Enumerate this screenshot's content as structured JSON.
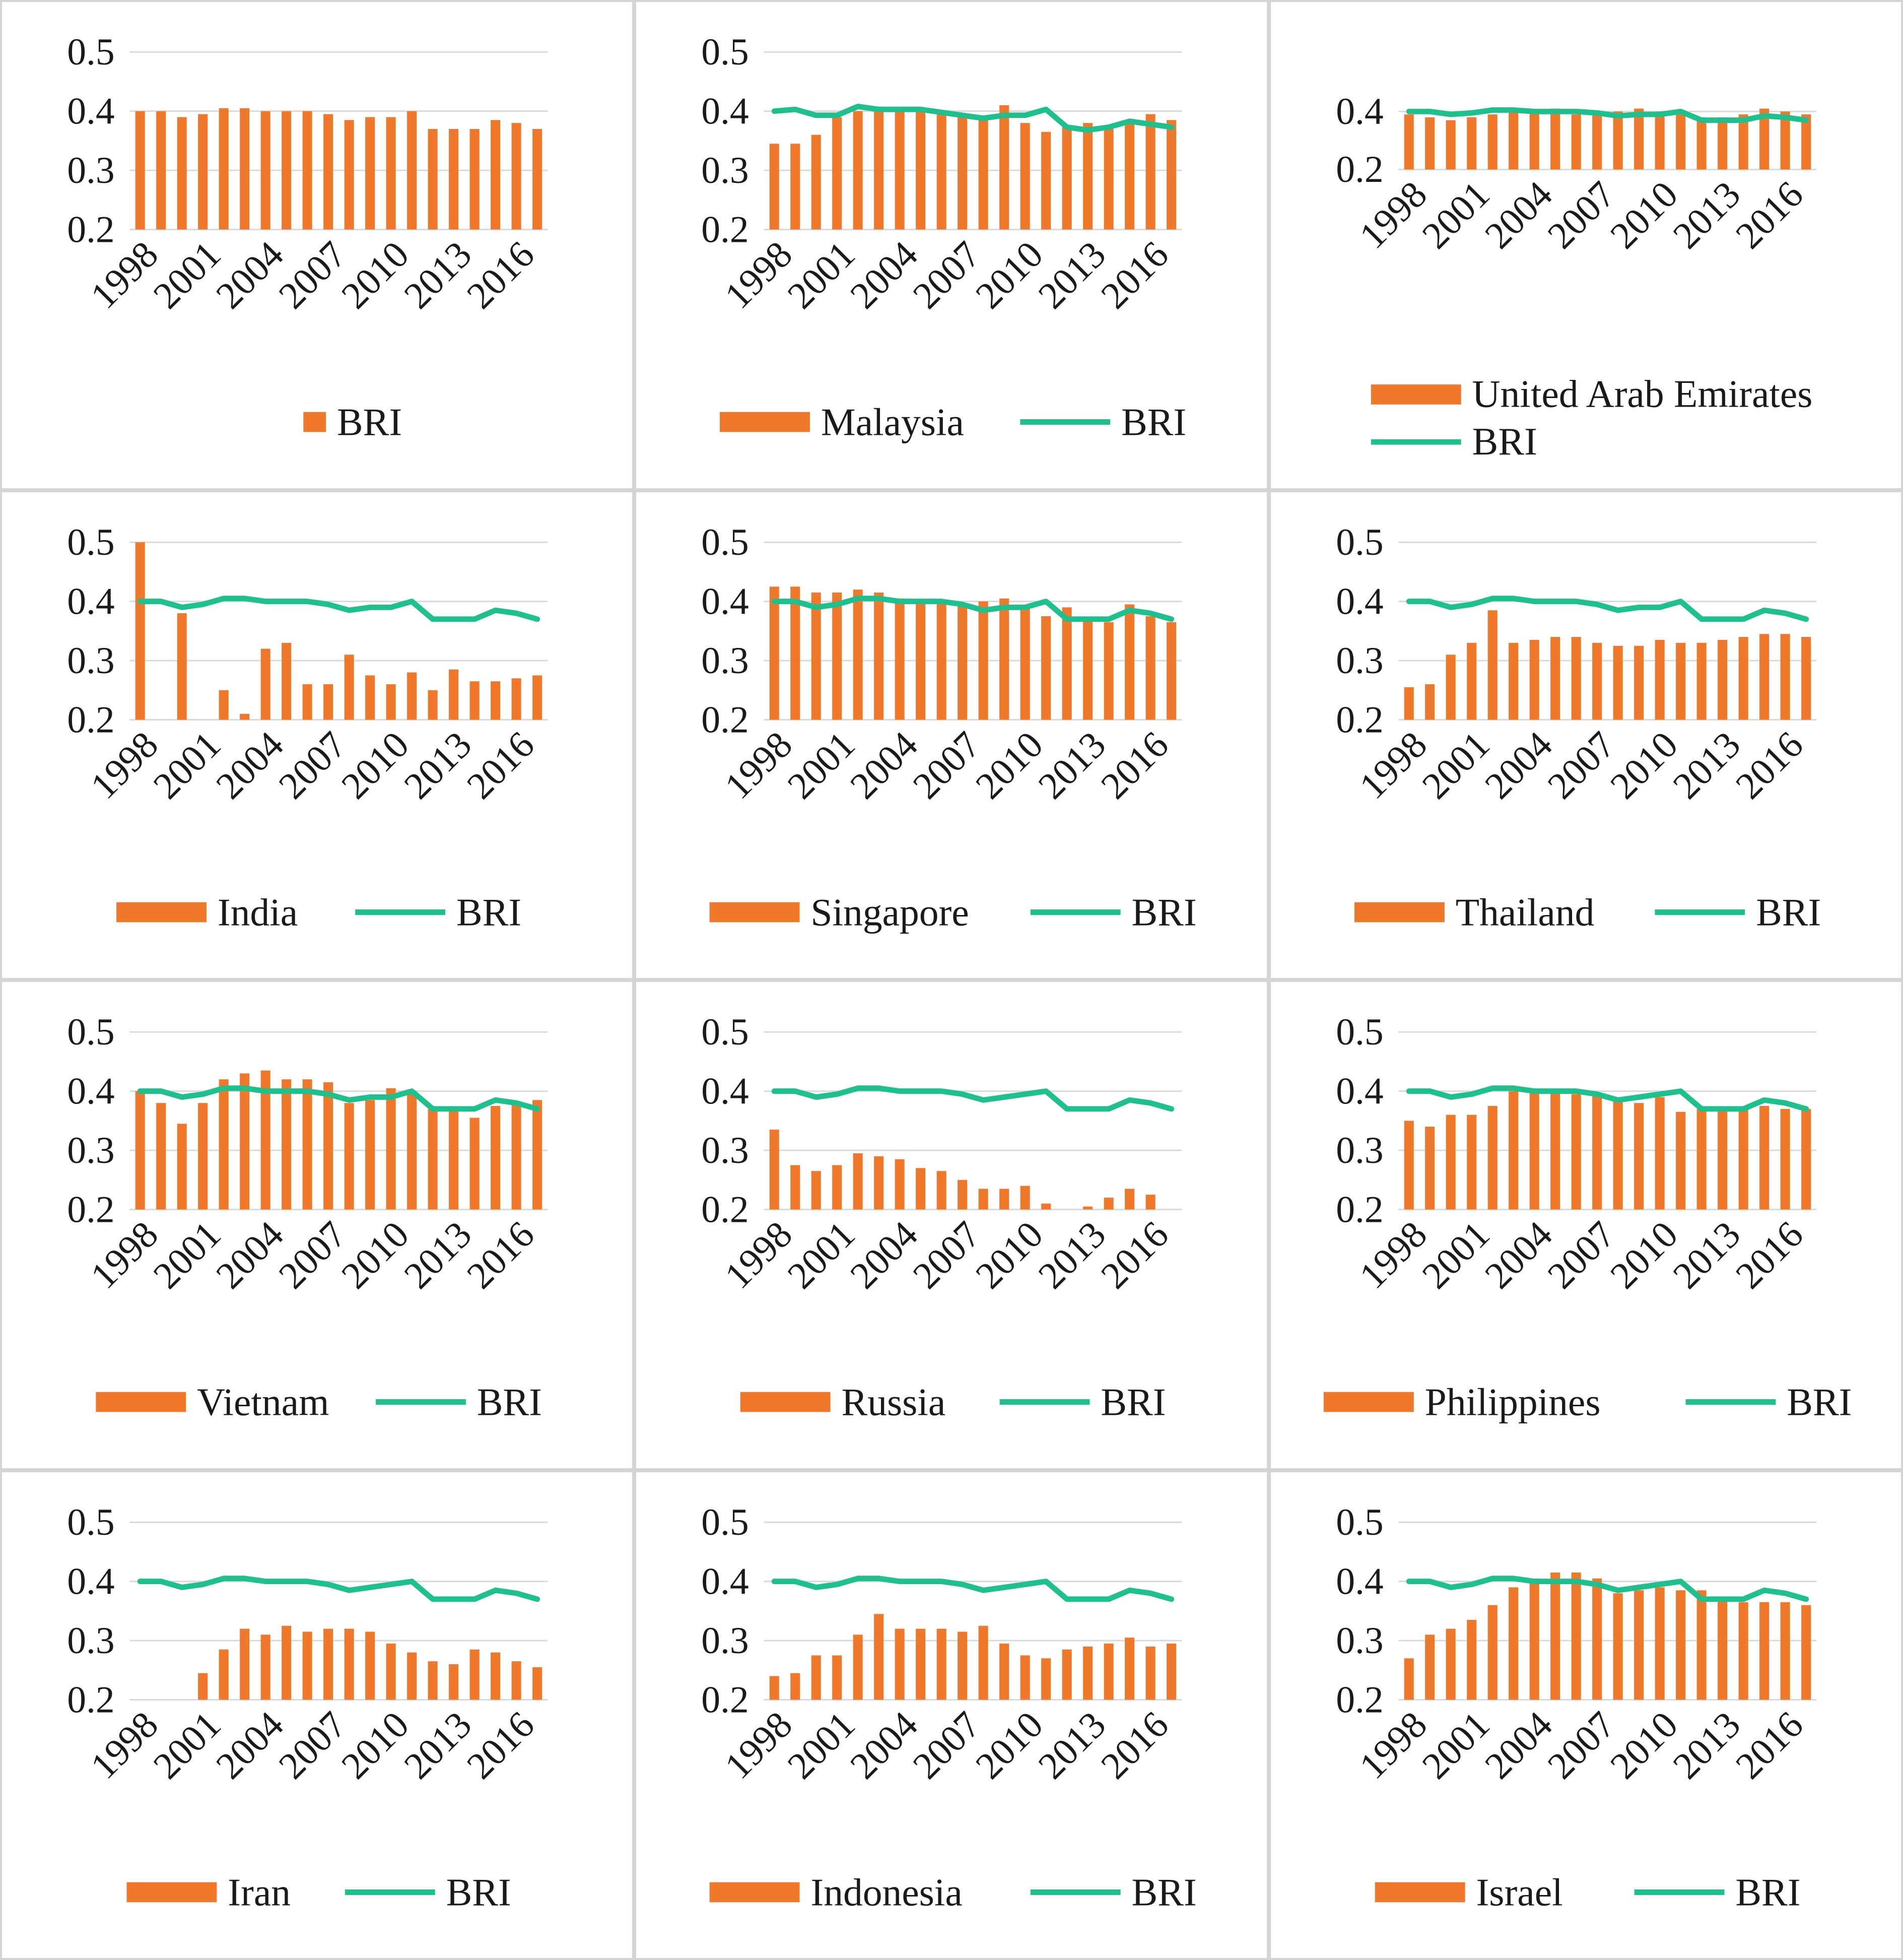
{
  "colors": {
    "bar": "#f0782a",
    "line": "#1ec08e",
    "grid": "#d9d9d9",
    "text": "#1a1a1a"
  },
  "chart_data": [
    {
      "type": "bar",
      "title": "BRI",
      "categories": [
        "1998",
        "1999",
        "2000",
        "2001",
        "2002",
        "2003",
        "2004",
        "2005",
        "2006",
        "2007",
        "2008",
        "2009",
        "2010",
        "2011",
        "2012",
        "2013",
        "2014",
        "2015",
        "2016",
        "2017"
      ],
      "xticks": [
        "1998",
        "2001",
        "2004",
        "2007",
        "2010",
        "2013",
        "2016"
      ],
      "yticks": [
        "0.5",
        "0.4",
        "0.3",
        "0.2"
      ],
      "ylim": [
        0.2,
        0.5
      ],
      "series": [
        {
          "name": "BRI",
          "kind": "bar",
          "values": [
            0.4,
            0.4,
            0.39,
            0.395,
            0.405,
            0.405,
            0.4,
            0.4,
            0.4,
            0.395,
            0.385,
            0.39,
            0.39,
            0.4,
            0.37,
            0.37,
            0.37,
            0.385,
            0.38,
            0.37
          ]
        }
      ]
    },
    {
      "type": "bar+line",
      "title": "Malaysia",
      "categories": [
        "1998",
        "1999",
        "2000",
        "2001",
        "2002",
        "2003",
        "2004",
        "2005",
        "2006",
        "2007",
        "2008",
        "2009",
        "2010",
        "2011",
        "2012",
        "2013",
        "2014",
        "2015",
        "2016",
        "2017"
      ],
      "xticks": [
        "1998",
        "2001",
        "2004",
        "2007",
        "2010",
        "2013",
        "2016"
      ],
      "yticks": [
        "0.5",
        "0.4",
        "0.3",
        "0.2"
      ],
      "ylim": [
        0.2,
        0.5
      ],
      "series": [
        {
          "name": "Malaysia",
          "kind": "bar",
          "values": [
            0.345,
            0.345,
            0.36,
            0.39,
            0.4,
            0.4,
            0.4,
            0.4,
            0.395,
            0.39,
            0.39,
            0.41,
            0.38,
            0.365,
            0.375,
            0.38,
            0.37,
            0.385,
            0.395,
            0.385
          ]
        },
        {
          "name": "BRI",
          "kind": "line",
          "values": [
            0.4,
            0.403,
            0.393,
            0.393,
            0.408,
            0.403,
            0.403,
            0.403,
            0.398,
            0.393,
            0.388,
            0.393,
            0.393,
            0.403,
            0.373,
            0.368,
            0.373,
            0.383,
            0.378,
            0.373
          ]
        }
      ]
    },
    {
      "type": "bar+line",
      "title": "United Arab Emirates",
      "categories": [
        "1998",
        "1999",
        "2000",
        "2001",
        "2002",
        "2003",
        "2004",
        "2005",
        "2006",
        "2007",
        "2008",
        "2009",
        "2010",
        "2011",
        "2012",
        "2013",
        "2014",
        "2015",
        "2016",
        "2017"
      ],
      "xticks": [
        "1998",
        "2001",
        "2004",
        "2007",
        "2010",
        "2013",
        "2016"
      ],
      "yticks": [
        "0.4",
        "0.2"
      ],
      "ylim": [
        0.2,
        0.45
      ],
      "series": [
        {
          "name": "United Arab Emirates",
          "kind": "bar",
          "values": [
            0.39,
            0.38,
            0.37,
            0.38,
            0.39,
            0.4,
            0.4,
            0.41,
            0.39,
            0.4,
            0.4,
            0.41,
            0.4,
            0.39,
            0.38,
            0.38,
            0.39,
            0.41,
            0.4,
            0.39
          ]
        },
        {
          "name": "BRI",
          "kind": "line",
          "values": [
            0.4,
            0.4,
            0.39,
            0.395,
            0.405,
            0.405,
            0.4,
            0.4,
            0.4,
            0.395,
            0.385,
            0.39,
            0.39,
            0.4,
            0.37,
            0.37,
            0.37,
            0.385,
            0.38,
            0.37
          ]
        }
      ]
    },
    {
      "type": "bar+line",
      "title": "India",
      "categories": [
        "1998",
        "1999",
        "2000",
        "2001",
        "2002",
        "2003",
        "2004",
        "2005",
        "2006",
        "2007",
        "2008",
        "2009",
        "2010",
        "2011",
        "2012",
        "2013",
        "2014",
        "2015",
        "2016",
        "2017"
      ],
      "xticks": [
        "1998",
        "2001",
        "2004",
        "2007",
        "2010",
        "2013",
        "2016"
      ],
      "yticks": [
        "0.5",
        "0.4",
        "0.3",
        "0.2"
      ],
      "ylim": [
        0.2,
        0.5
      ],
      "series": [
        {
          "name": "India",
          "kind": "bar",
          "values": [
            0.5,
            0.2,
            0.38,
            0.2,
            0.25,
            0.21,
            0.32,
            0.33,
            0.26,
            0.26,
            0.31,
            0.275,
            0.26,
            0.28,
            0.25,
            0.285,
            0.265,
            0.265,
            0.27,
            0.275
          ]
        },
        {
          "name": "BRI",
          "kind": "line",
          "values": [
            0.4,
            0.4,
            0.39,
            0.395,
            0.405,
            0.405,
            0.4,
            0.4,
            0.4,
            0.395,
            0.385,
            0.39,
            0.39,
            0.4,
            0.37,
            0.37,
            0.37,
            0.385,
            0.38,
            0.37
          ]
        }
      ]
    },
    {
      "type": "bar+line",
      "title": "Singapore",
      "categories": [
        "1998",
        "1999",
        "2000",
        "2001",
        "2002",
        "2003",
        "2004",
        "2005",
        "2006",
        "2007",
        "2008",
        "2009",
        "2010",
        "2011",
        "2012",
        "2013",
        "2014",
        "2015",
        "2016",
        "2017"
      ],
      "xticks": [
        "1998",
        "2001",
        "2004",
        "2007",
        "2010",
        "2013",
        "2016"
      ],
      "yticks": [
        "0.5",
        "0.4",
        "0.3",
        "0.2"
      ],
      "ylim": [
        0.2,
        0.5
      ],
      "series": [
        {
          "name": "Singapore",
          "kind": "bar",
          "values": [
            0.425,
            0.425,
            0.415,
            0.415,
            0.42,
            0.415,
            0.405,
            0.4,
            0.4,
            0.395,
            0.4,
            0.405,
            0.39,
            0.375,
            0.39,
            0.37,
            0.365,
            0.395,
            0.375,
            0.365
          ]
        },
        {
          "name": "BRI",
          "kind": "line",
          "values": [
            0.4,
            0.4,
            0.39,
            0.395,
            0.405,
            0.405,
            0.4,
            0.4,
            0.4,
            0.395,
            0.385,
            0.39,
            0.39,
            0.4,
            0.37,
            0.37,
            0.37,
            0.385,
            0.38,
            0.37
          ]
        }
      ]
    },
    {
      "type": "bar+line",
      "title": "Thailand",
      "categories": [
        "1998",
        "1999",
        "2000",
        "2001",
        "2002",
        "2003",
        "2004",
        "2005",
        "2006",
        "2007",
        "2008",
        "2009",
        "2010",
        "2011",
        "2012",
        "2013",
        "2014",
        "2015",
        "2016",
        "2017"
      ],
      "xticks": [
        "1998",
        "2001",
        "2004",
        "2007",
        "2010",
        "2013",
        "2016"
      ],
      "yticks": [
        "0.5",
        "0.4",
        "0.3",
        "0.2"
      ],
      "ylim": [
        0.2,
        0.5
      ],
      "series": [
        {
          "name": "Thailand",
          "kind": "bar",
          "values": [
            0.255,
            0.26,
            0.31,
            0.33,
            0.385,
            0.33,
            0.335,
            0.34,
            0.34,
            0.33,
            0.325,
            0.325,
            0.335,
            0.33,
            0.33,
            0.335,
            0.34,
            0.345,
            0.345,
            0.34
          ]
        },
        {
          "name": "BRI",
          "kind": "line",
          "values": [
            0.4,
            0.4,
            0.39,
            0.395,
            0.405,
            0.405,
            0.4,
            0.4,
            0.4,
            0.395,
            0.385,
            0.39,
            0.39,
            0.4,
            0.37,
            0.37,
            0.37,
            0.385,
            0.38,
            0.37
          ]
        }
      ]
    },
    {
      "type": "bar+line",
      "title": "Vietnam",
      "categories": [
        "1998",
        "1999",
        "2000",
        "2001",
        "2002",
        "2003",
        "2004",
        "2005",
        "2006",
        "2007",
        "2008",
        "2009",
        "2010",
        "2011",
        "2012",
        "2013",
        "2014",
        "2015",
        "2016",
        "2017"
      ],
      "xticks": [
        "1998",
        "2001",
        "2004",
        "2007",
        "2010",
        "2013",
        "2016"
      ],
      "yticks": [
        "0.5",
        "0.4",
        "0.3",
        "0.2"
      ],
      "ylim": [
        0.2,
        0.5
      ],
      "series": [
        {
          "name": "Vietnam",
          "kind": "bar",
          "values": [
            0.4,
            0.38,
            0.345,
            0.38,
            0.42,
            0.43,
            0.435,
            0.42,
            0.42,
            0.415,
            0.38,
            0.385,
            0.405,
            0.4,
            0.37,
            0.37,
            0.355,
            0.375,
            0.38,
            0.385
          ]
        },
        {
          "name": "BRI",
          "kind": "line",
          "values": [
            0.4,
            0.4,
            0.39,
            0.395,
            0.405,
            0.405,
            0.4,
            0.4,
            0.4,
            0.395,
            0.385,
            0.39,
            0.39,
            0.4,
            0.37,
            0.37,
            0.37,
            0.385,
            0.38,
            0.37
          ]
        }
      ]
    },
    {
      "type": "bar+line",
      "title": "Russia",
      "categories": [
        "1998",
        "1999",
        "2000",
        "2001",
        "2002",
        "2003",
        "2004",
        "2005",
        "2006",
        "2007",
        "2008",
        "2009",
        "2010",
        "2011",
        "2012",
        "2013",
        "2014",
        "2015",
        "2016",
        "2017"
      ],
      "xticks": [
        "1998",
        "2001",
        "2004",
        "2007",
        "2010",
        "2013",
        "2016"
      ],
      "yticks": [
        "0.5",
        "0.4",
        "0.3",
        "0.2"
      ],
      "ylim": [
        0.2,
        0.5
      ],
      "series": [
        {
          "name": "Russia",
          "kind": "bar",
          "values": [
            0.335,
            0.275,
            0.265,
            0.275,
            0.295,
            0.29,
            0.285,
            0.27,
            0.265,
            0.25,
            0.235,
            0.235,
            0.24,
            0.21,
            0.2,
            0.205,
            0.22,
            0.235,
            0.225,
            0.2
          ]
        },
        {
          "name": "BRI",
          "kind": "line",
          "values": [
            0.4,
            0.4,
            0.39,
            0.395,
            0.405,
            0.405,
            0.4,
            0.4,
            0.4,
            0.395,
            0.385,
            0.39,
            0.395,
            0.4,
            0.37,
            0.37,
            0.37,
            0.385,
            0.38,
            0.37
          ]
        }
      ]
    },
    {
      "type": "bar+line",
      "title": "Philippines",
      "categories": [
        "1998",
        "1999",
        "2000",
        "2001",
        "2002",
        "2003",
        "2004",
        "2005",
        "2006",
        "2007",
        "2008",
        "2009",
        "2010",
        "2011",
        "2012",
        "2013",
        "2014",
        "2015",
        "2016",
        "2017"
      ],
      "xticks": [
        "1998",
        "2001",
        "2004",
        "2007",
        "2010",
        "2013",
        "2016"
      ],
      "yticks": [
        "0.5",
        "0.4",
        "0.3",
        "0.2"
      ],
      "ylim": [
        0.2,
        0.5
      ],
      "series": [
        {
          "name": "Philippines",
          "kind": "bar",
          "values": [
            0.35,
            0.34,
            0.36,
            0.36,
            0.375,
            0.4,
            0.4,
            0.4,
            0.395,
            0.395,
            0.385,
            0.38,
            0.39,
            0.365,
            0.37,
            0.37,
            0.37,
            0.375,
            0.37,
            0.37
          ]
        },
        {
          "name": "BRI",
          "kind": "line",
          "values": [
            0.4,
            0.4,
            0.39,
            0.395,
            0.405,
            0.405,
            0.4,
            0.4,
            0.4,
            0.395,
            0.385,
            0.39,
            0.395,
            0.4,
            0.37,
            0.37,
            0.37,
            0.385,
            0.38,
            0.37
          ]
        }
      ]
    },
    {
      "type": "bar+line",
      "title": "Iran",
      "categories": [
        "1998",
        "1999",
        "2000",
        "2001",
        "2002",
        "2003",
        "2004",
        "2005",
        "2006",
        "2007",
        "2008",
        "2009",
        "2010",
        "2011",
        "2012",
        "2013",
        "2014",
        "2015",
        "2016",
        "2017"
      ],
      "xticks": [
        "1998",
        "2001",
        "2004",
        "2007",
        "2010",
        "2013",
        "2016"
      ],
      "yticks": [
        "0.5",
        "0.4",
        "0.3",
        "0.2"
      ],
      "ylim": [
        0.2,
        0.5
      ],
      "series": [
        {
          "name": "Iran",
          "kind": "bar",
          "values": [
            0.2,
            0.2,
            0.2,
            0.245,
            0.285,
            0.32,
            0.31,
            0.325,
            0.315,
            0.32,
            0.32,
            0.315,
            0.295,
            0.28,
            0.265,
            0.26,
            0.285,
            0.28,
            0.265,
            0.255
          ]
        },
        {
          "name": "BRI",
          "kind": "line",
          "values": [
            0.4,
            0.4,
            0.39,
            0.395,
            0.405,
            0.405,
            0.4,
            0.4,
            0.4,
            0.395,
            0.385,
            0.39,
            0.395,
            0.4,
            0.37,
            0.37,
            0.37,
            0.385,
            0.38,
            0.37
          ]
        }
      ]
    },
    {
      "type": "bar+line",
      "title": "Indonesia",
      "categories": [
        "1998",
        "1999",
        "2000",
        "2001",
        "2002",
        "2003",
        "2004",
        "2005",
        "2006",
        "2007",
        "2008",
        "2009",
        "2010",
        "2011",
        "2012",
        "2013",
        "2014",
        "2015",
        "2016",
        "2017"
      ],
      "xticks": [
        "1998",
        "2001",
        "2004",
        "2007",
        "2010",
        "2013",
        "2016"
      ],
      "yticks": [
        "0.5",
        "0.4",
        "0.3",
        "0.2"
      ],
      "ylim": [
        0.2,
        0.5
      ],
      "series": [
        {
          "name": "Indonesia",
          "kind": "bar",
          "values": [
            0.24,
            0.245,
            0.275,
            0.275,
            0.31,
            0.345,
            0.32,
            0.32,
            0.32,
            0.315,
            0.325,
            0.295,
            0.275,
            0.27,
            0.285,
            0.29,
            0.295,
            0.305,
            0.29,
            0.295
          ]
        },
        {
          "name": "BRI",
          "kind": "line",
          "values": [
            0.4,
            0.4,
            0.39,
            0.395,
            0.405,
            0.405,
            0.4,
            0.4,
            0.4,
            0.395,
            0.385,
            0.39,
            0.395,
            0.4,
            0.37,
            0.37,
            0.37,
            0.385,
            0.38,
            0.37
          ]
        }
      ]
    },
    {
      "type": "bar+line",
      "title": "Israel",
      "categories": [
        "1998",
        "1999",
        "2000",
        "2001",
        "2002",
        "2003",
        "2004",
        "2005",
        "2006",
        "2007",
        "2008",
        "2009",
        "2010",
        "2011",
        "2012",
        "2013",
        "2014",
        "2015",
        "2016",
        "2017"
      ],
      "xticks": [
        "1998",
        "2001",
        "2004",
        "2007",
        "2010",
        "2013",
        "2016"
      ],
      "yticks": [
        "0.5",
        "0.4",
        "0.3",
        "0.2"
      ],
      "ylim": [
        0.2,
        0.5
      ],
      "series": [
        {
          "name": "Israel",
          "kind": "bar",
          "values": [
            0.27,
            0.31,
            0.32,
            0.335,
            0.36,
            0.39,
            0.405,
            0.415,
            0.415,
            0.405,
            0.38,
            0.385,
            0.39,
            0.385,
            0.385,
            0.37,
            0.365,
            0.365,
            0.365,
            0.36
          ]
        },
        {
          "name": "BRI",
          "kind": "line",
          "values": [
            0.4,
            0.4,
            0.39,
            0.395,
            0.405,
            0.405,
            0.4,
            0.4,
            0.4,
            0.395,
            0.385,
            0.39,
            0.395,
            0.4,
            0.37,
            0.37,
            0.37,
            0.385,
            0.38,
            0.37
          ]
        }
      ]
    }
  ]
}
